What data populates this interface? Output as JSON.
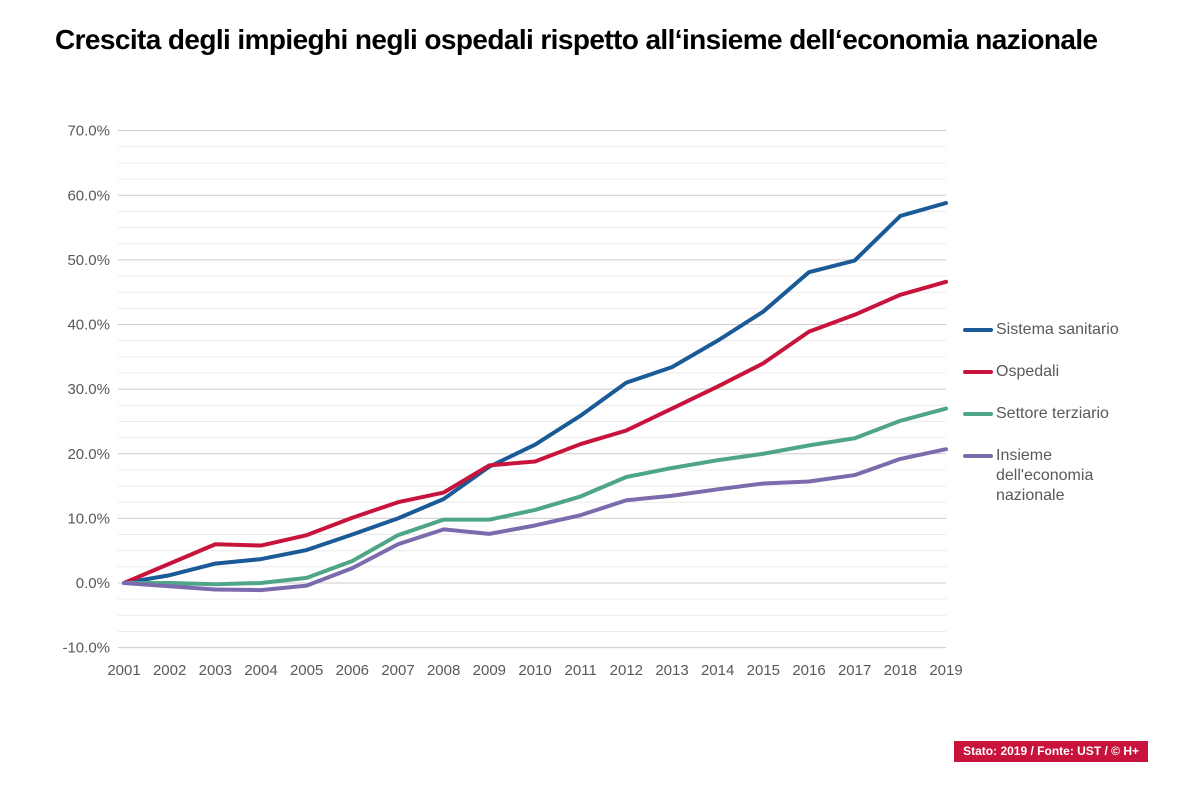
{
  "title": "Crescita degli impieghi negli ospedali rispetto all‘insieme dell‘economia nazionale",
  "footer": {
    "text": "Stato: 2019 / Fonte: UST / © H+",
    "bg_color": "#c8143c",
    "text_color": "#ffffff"
  },
  "colors": {
    "axis_text": "#595959",
    "grid_major": "#cccccc",
    "grid_minor": "#ebebeb"
  },
  "chart_data": {
    "type": "line",
    "title": "Crescita degli impieghi negli ospedali rispetto all‘insieme dell‘economia nazionale",
    "x": [
      2001,
      2002,
      2003,
      2004,
      2005,
      2006,
      2007,
      2008,
      2009,
      2010,
      2011,
      2012,
      2013,
      2014,
      2015,
      2016,
      2017,
      2018,
      2019
    ],
    "series": [
      {
        "name": "Sistema sanitario",
        "color": "#1a5a96",
        "values": [
          0.0,
          1.2,
          3.0,
          3.7,
          5.1,
          7.5,
          10.0,
          13.0,
          18.0,
          21.4,
          25.9,
          31.0,
          33.4,
          37.5,
          42.0,
          48.1,
          49.9,
          56.8,
          58.8
        ]
      },
      {
        "name": "Ospedali",
        "color": "#c8143c",
        "values": [
          0.0,
          3.0,
          6.0,
          5.8,
          7.4,
          10.1,
          12.5,
          14.0,
          18.2,
          18.8,
          21.5,
          23.6,
          27.0,
          30.4,
          34.0,
          38.9,
          41.5,
          44.6,
          46.6
        ]
      },
      {
        "name": "Settore terziario",
        "color": "#4ea687",
        "values": [
          0.0,
          0.0,
          -0.2,
          0.0,
          0.8,
          3.4,
          7.4,
          9.8,
          9.8,
          11.3,
          13.4,
          16.4,
          17.8,
          19.0,
          20.0,
          21.3,
          22.4,
          25.1,
          27.0
        ]
      },
      {
        "name": "Insieme dell'economia nazionale",
        "color": "#7c6bac",
        "values": [
          0.0,
          -0.5,
          -1.0,
          -1.1,
          -0.4,
          2.3,
          6.0,
          8.3,
          7.6,
          8.9,
          10.5,
          12.8,
          13.5,
          14.5,
          15.4,
          15.7,
          16.7,
          19.2,
          20.7
        ]
      }
    ],
    "xlabel": "",
    "ylabel": "",
    "ylim": [
      -10,
      70
    ],
    "ytick_step": 10,
    "ytick_minor_step": 2.5,
    "ytick_format": "0.0%",
    "grid": true,
    "legend_position": "right"
  }
}
